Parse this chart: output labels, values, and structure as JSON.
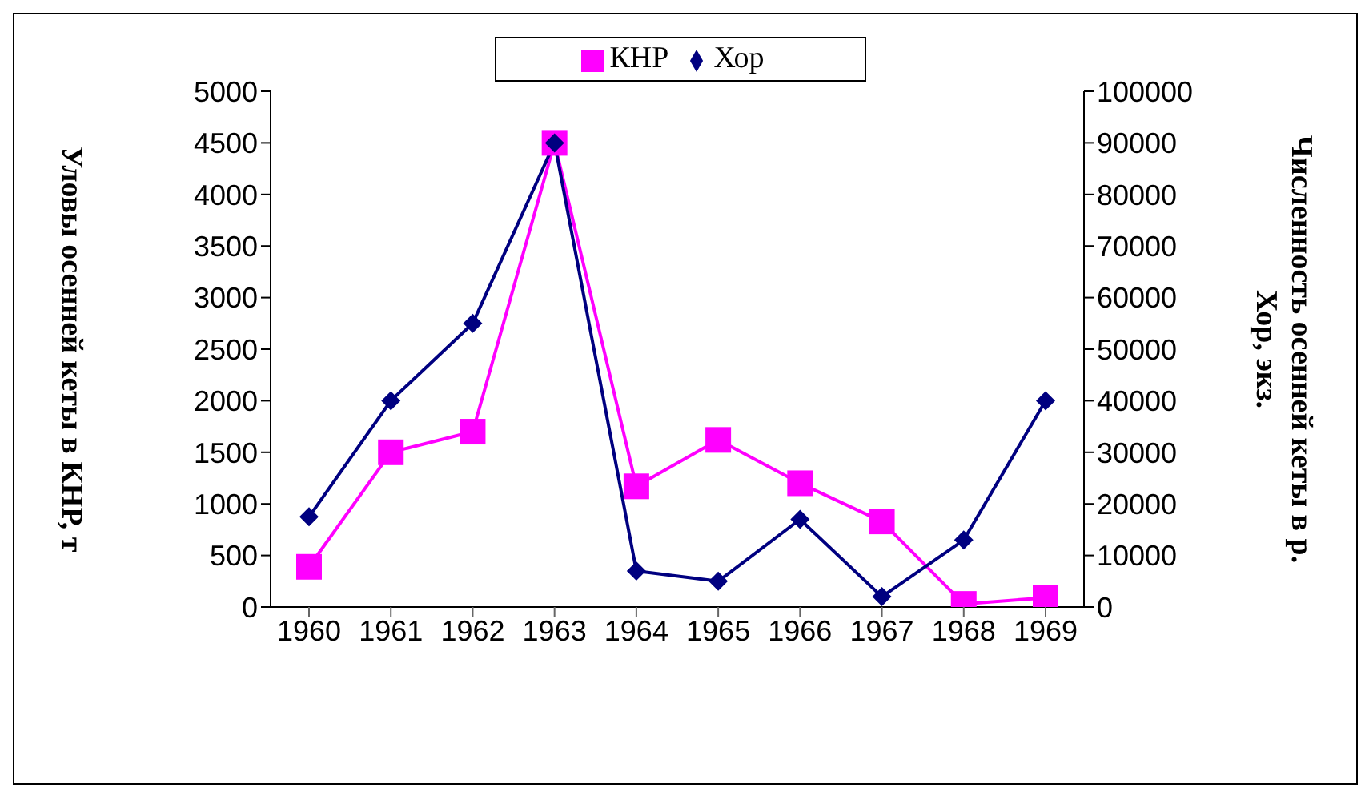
{
  "chart_data": {
    "type": "line",
    "ylabel": "Уловы осенней кеты в КНР, т",
    "y2label": "Численность осенней кеты в р. Хор, экз.",
    "categories": [
      "1960",
      "1961",
      "1962",
      "1963",
      "1964",
      "1965",
      "1966",
      "1967",
      "1968",
      "1969"
    ],
    "series": [
      {
        "name": "КНР",
        "color": "#ff00ff",
        "marker": "square",
        "values": [
          390,
          1500,
          1700,
          4500,
          1170,
          1620,
          1200,
          830,
          30,
          90
        ]
      },
      {
        "name": "Хор",
        "color": "#000080",
        "marker": "diamond",
        "axis": "y2",
        "values": [
          17500,
          40000,
          55000,
          90000,
          7000,
          5000,
          17000,
          2000,
          13000,
          40000
        ]
      }
    ],
    "ylim": [
      0,
      5000
    ],
    "yticks": [
      0,
      500,
      1000,
      1500,
      2000,
      2500,
      3000,
      3500,
      4000,
      4500,
      5000
    ],
    "y2lim": [
      0,
      100000
    ],
    "y2ticks": [
      0,
      10000,
      20000,
      30000,
      40000,
      50000,
      60000,
      70000,
      80000,
      90000,
      100000
    ],
    "grid": false,
    "legend": "top"
  }
}
